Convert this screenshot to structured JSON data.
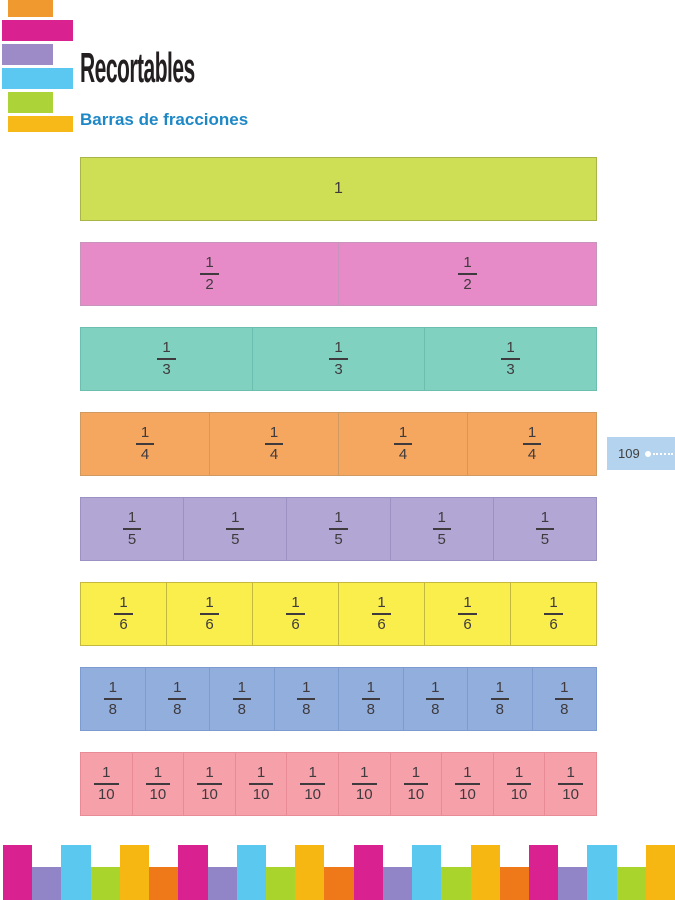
{
  "header": {
    "title": "Recortables",
    "title_color": "#231f20",
    "subtitle": "Barras de fracciones",
    "subtitle_color": "#1e88c7"
  },
  "logo": {
    "blocks": [
      {
        "name": "orange",
        "color": "#f0992e"
      },
      {
        "name": "magenta",
        "color": "#d9218f"
      },
      {
        "name": "purple",
        "color": "#9d8bc8"
      },
      {
        "name": "light-blue",
        "color": "#5ac8f0"
      },
      {
        "name": "green",
        "color": "#acd337"
      },
      {
        "name": "amber",
        "color": "#f6b917"
      }
    ]
  },
  "fraction_text_color": "#3e3a3d",
  "bars": [
    {
      "label": "1",
      "cells": 1,
      "fill": "#cfdf55",
      "border": "#a9b547"
    },
    {
      "numerator": "1",
      "denominator": "2",
      "cells": 2,
      "fill": "#e78bc8",
      "border": "#c794bb"
    },
    {
      "numerator": "1",
      "denominator": "3",
      "cells": 3,
      "fill": "#81d1c0",
      "border": "#6cbfae"
    },
    {
      "numerator": "1",
      "denominator": "4",
      "cells": 4,
      "fill": "#f5a75f",
      "border": "#d0995f"
    },
    {
      "numerator": "1",
      "denominator": "5",
      "cells": 5,
      "fill": "#b2a7d4",
      "border": "#9c91c3"
    },
    {
      "numerator": "1",
      "denominator": "6",
      "cells": 6,
      "fill": "#f9ee4b",
      "border": "#c3b93f"
    },
    {
      "numerator": "1",
      "denominator": "8",
      "cells": 8,
      "fill": "#92aedd",
      "border": "#7d9bce"
    },
    {
      "numerator": "1",
      "denominator": "10",
      "cells": 10,
      "fill": "#f6a0aa",
      "border": "#e78b96"
    }
  ],
  "page_tab": {
    "number": "109",
    "fill": "#b3d3ee",
    "text_color": "#404040"
  },
  "footer": {
    "colors": [
      "#d9218f",
      "#9185c8",
      "#5bc8f0",
      "#a8d42b",
      "#f7b713",
      "#ef7918"
    ],
    "block_count": 23
  }
}
